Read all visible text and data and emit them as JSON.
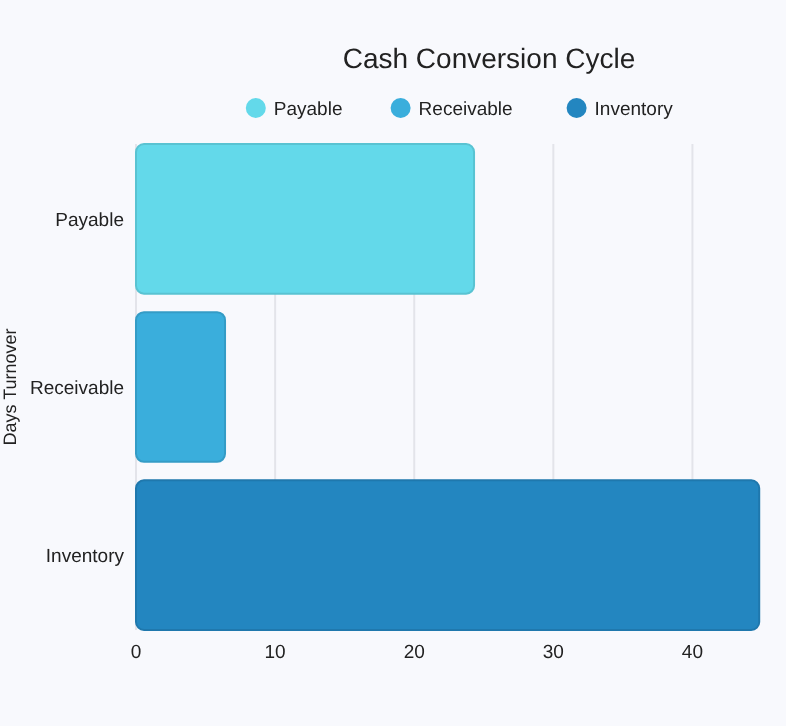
{
  "chart_data": {
    "type": "bar",
    "orientation": "horizontal",
    "title": "Cash Conversion Cycle",
    "ylabel": "Days Turnover",
    "categories": [
      "Payable",
      "Receivable",
      "Inventory"
    ],
    "series": [
      {
        "name": "Payable",
        "color": "#63d9ea",
        "values": [
          24.3,
          null,
          null
        ]
      },
      {
        "name": "Receivable",
        "color": "#3aaedc",
        "values": [
          null,
          6.4,
          null
        ]
      },
      {
        "name": "Inventory",
        "color": "#2386c0",
        "values": [
          null,
          null,
          44.8
        ]
      }
    ],
    "xlim": [
      0,
      45
    ],
    "xticks": [
      0,
      10,
      20,
      30,
      40
    ],
    "grid": "x",
    "legend": "top"
  }
}
